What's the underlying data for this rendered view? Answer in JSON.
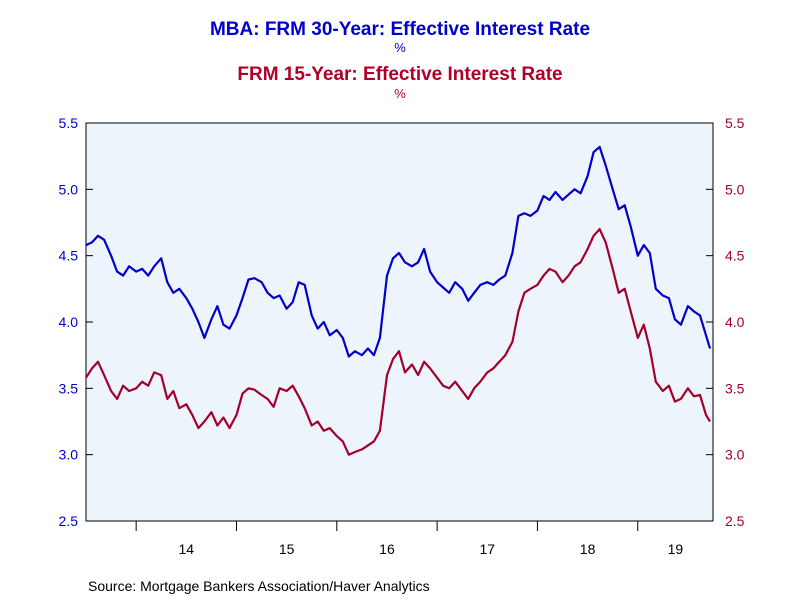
{
  "titles": {
    "series1_title": "MBA: FRM 30-Year: Effective Interest Rate",
    "series1_unit": "%",
    "series2_title": "FRM 15-Year: Effective Interest Rate",
    "series2_unit": "%"
  },
  "source": "Source:  Mortgage Bankers Association/Haver Analytics",
  "colors": {
    "series1": "#0000cc",
    "series2": "#a3002a",
    "plot_bg": "#eef4fc"
  },
  "chart_data": {
    "type": "line",
    "x_unit": "year",
    "x_tick_labels": [
      "14",
      "15",
      "16",
      "17",
      "18",
      "19"
    ],
    "x_tick_values": [
      2014,
      2015,
      2016,
      2017,
      2018,
      2019
    ],
    "ylim_left": [
      2.5,
      5.5
    ],
    "ylim_right": [
      2.5,
      5.5
    ],
    "y_ticks": [
      "2.5",
      "3.0",
      "3.5",
      "4.0",
      "4.5",
      "5.0",
      "5.5"
    ],
    "y_tick_values": [
      2.5,
      3.0,
      3.5,
      4.0,
      4.5,
      5.0,
      5.5
    ],
    "grid": false,
    "series": [
      {
        "axis": "left",
        "x": [
          2013.5,
          2013.56,
          2013.62,
          2013.68,
          2013.75,
          2013.81,
          2013.87,
          2013.93,
          2014.0,
          2014.06,
          2014.12,
          2014.18,
          2014.25,
          2014.31,
          2014.37,
          2014.43,
          2014.5,
          2014.56,
          2014.62,
          2014.68,
          2014.75,
          2014.81,
          2014.87,
          2014.93,
          2015.0,
          2015.06,
          2015.12,
          2015.18,
          2015.25,
          2015.31,
          2015.37,
          2015.43,
          2015.5,
          2015.56,
          2015.62,
          2015.68,
          2015.75,
          2015.81,
          2015.87,
          2015.93,
          2016.0,
          2016.06,
          2016.12,
          2016.18,
          2016.25,
          2016.31,
          2016.37,
          2016.43,
          2016.5,
          2016.56,
          2016.62,
          2016.68,
          2016.75,
          2016.81,
          2016.87,
          2016.93,
          2017.0,
          2017.06,
          2017.12,
          2017.18,
          2017.25,
          2017.31,
          2017.37,
          2017.43,
          2017.5,
          2017.56,
          2017.62,
          2017.68,
          2017.75,
          2017.81,
          2017.87,
          2017.93,
          2018.0,
          2018.06,
          2018.12,
          2018.18,
          2018.25,
          2018.31,
          2018.37,
          2018.43,
          2018.5,
          2018.56,
          2018.62,
          2018.68,
          2018.75,
          2018.81,
          2018.87,
          2018.93,
          2019.0,
          2019.06,
          2019.12,
          2019.18,
          2019.25,
          2019.31,
          2019.37,
          2019.43,
          2019.5,
          2019.56,
          2019.62,
          2019.68,
          2019.72
        ],
        "values": [
          4.58,
          4.6,
          4.65,
          4.62,
          4.5,
          4.38,
          4.35,
          4.42,
          4.38,
          4.4,
          4.35,
          4.42,
          4.48,
          4.3,
          4.22,
          4.25,
          4.18,
          4.1,
          4.0,
          3.88,
          4.02,
          4.12,
          3.98,
          3.95,
          4.05,
          4.18,
          4.32,
          4.33,
          4.3,
          4.22,
          4.18,
          4.2,
          4.1,
          4.15,
          4.3,
          4.28,
          4.05,
          3.95,
          4.0,
          3.9,
          3.94,
          3.88,
          3.74,
          3.78,
          3.75,
          3.8,
          3.75,
          3.88,
          4.35,
          4.48,
          4.52,
          4.45,
          4.42,
          4.45,
          4.55,
          4.38,
          4.3,
          4.26,
          4.22,
          4.3,
          4.25,
          4.16,
          4.22,
          4.28,
          4.3,
          4.28,
          4.32,
          4.35,
          4.52,
          4.8,
          4.82,
          4.8,
          4.84,
          4.95,
          4.92,
          4.98,
          4.92,
          4.96,
          5.0,
          4.97,
          5.1,
          5.28,
          5.32,
          5.18,
          5.0,
          4.85,
          4.88,
          4.72,
          4.5,
          4.58,
          4.52,
          4.25,
          4.2,
          4.18,
          4.02,
          3.98,
          4.12,
          4.08,
          4.05,
          3.9,
          3.8
        ]
      },
      {
        "axis": "right",
        "x": [
          2013.5,
          2013.56,
          2013.62,
          2013.68,
          2013.75,
          2013.81,
          2013.87,
          2013.93,
          2014.0,
          2014.06,
          2014.12,
          2014.18,
          2014.25,
          2014.31,
          2014.37,
          2014.43,
          2014.5,
          2014.56,
          2014.62,
          2014.68,
          2014.75,
          2014.81,
          2014.87,
          2014.93,
          2015.0,
          2015.06,
          2015.12,
          2015.18,
          2015.25,
          2015.31,
          2015.37,
          2015.43,
          2015.5,
          2015.56,
          2015.62,
          2015.68,
          2015.75,
          2015.81,
          2015.87,
          2015.93,
          2016.0,
          2016.06,
          2016.12,
          2016.18,
          2016.25,
          2016.31,
          2016.37,
          2016.43,
          2016.5,
          2016.56,
          2016.62,
          2016.68,
          2016.75,
          2016.81,
          2016.87,
          2016.93,
          2017.0,
          2017.06,
          2017.12,
          2017.18,
          2017.25,
          2017.31,
          2017.37,
          2017.43,
          2017.5,
          2017.56,
          2017.62,
          2017.68,
          2017.75,
          2017.81,
          2017.87,
          2017.93,
          2018.0,
          2018.06,
          2018.12,
          2018.18,
          2018.25,
          2018.31,
          2018.37,
          2018.43,
          2018.5,
          2018.56,
          2018.62,
          2018.68,
          2018.75,
          2018.81,
          2018.87,
          2018.93,
          2019.0,
          2019.06,
          2019.12,
          2019.18,
          2019.25,
          2019.31,
          2019.37,
          2019.43,
          2019.5,
          2019.56,
          2019.62,
          2019.68,
          2019.72
        ],
        "values": [
          3.58,
          3.65,
          3.7,
          3.6,
          3.48,
          3.42,
          3.52,
          3.48,
          3.5,
          3.55,
          3.52,
          3.62,
          3.6,
          3.42,
          3.48,
          3.35,
          3.38,
          3.3,
          3.2,
          3.25,
          3.32,
          3.22,
          3.28,
          3.2,
          3.3,
          3.46,
          3.5,
          3.49,
          3.45,
          3.42,
          3.36,
          3.5,
          3.48,
          3.52,
          3.44,
          3.35,
          3.22,
          3.25,
          3.18,
          3.2,
          3.14,
          3.1,
          3.0,
          3.02,
          3.04,
          3.07,
          3.1,
          3.18,
          3.6,
          3.72,
          3.78,
          3.62,
          3.68,
          3.6,
          3.7,
          3.65,
          3.58,
          3.52,
          3.5,
          3.55,
          3.48,
          3.42,
          3.5,
          3.55,
          3.62,
          3.65,
          3.7,
          3.75,
          3.85,
          4.08,
          4.22,
          4.25,
          4.28,
          4.35,
          4.4,
          4.38,
          4.3,
          4.35,
          4.42,
          4.45,
          4.55,
          4.65,
          4.7,
          4.6,
          4.4,
          4.22,
          4.25,
          4.08,
          3.88,
          3.98,
          3.8,
          3.55,
          3.48,
          3.52,
          3.4,
          3.42,
          3.5,
          3.44,
          3.45,
          3.3,
          3.25
        ]
      }
    ]
  }
}
